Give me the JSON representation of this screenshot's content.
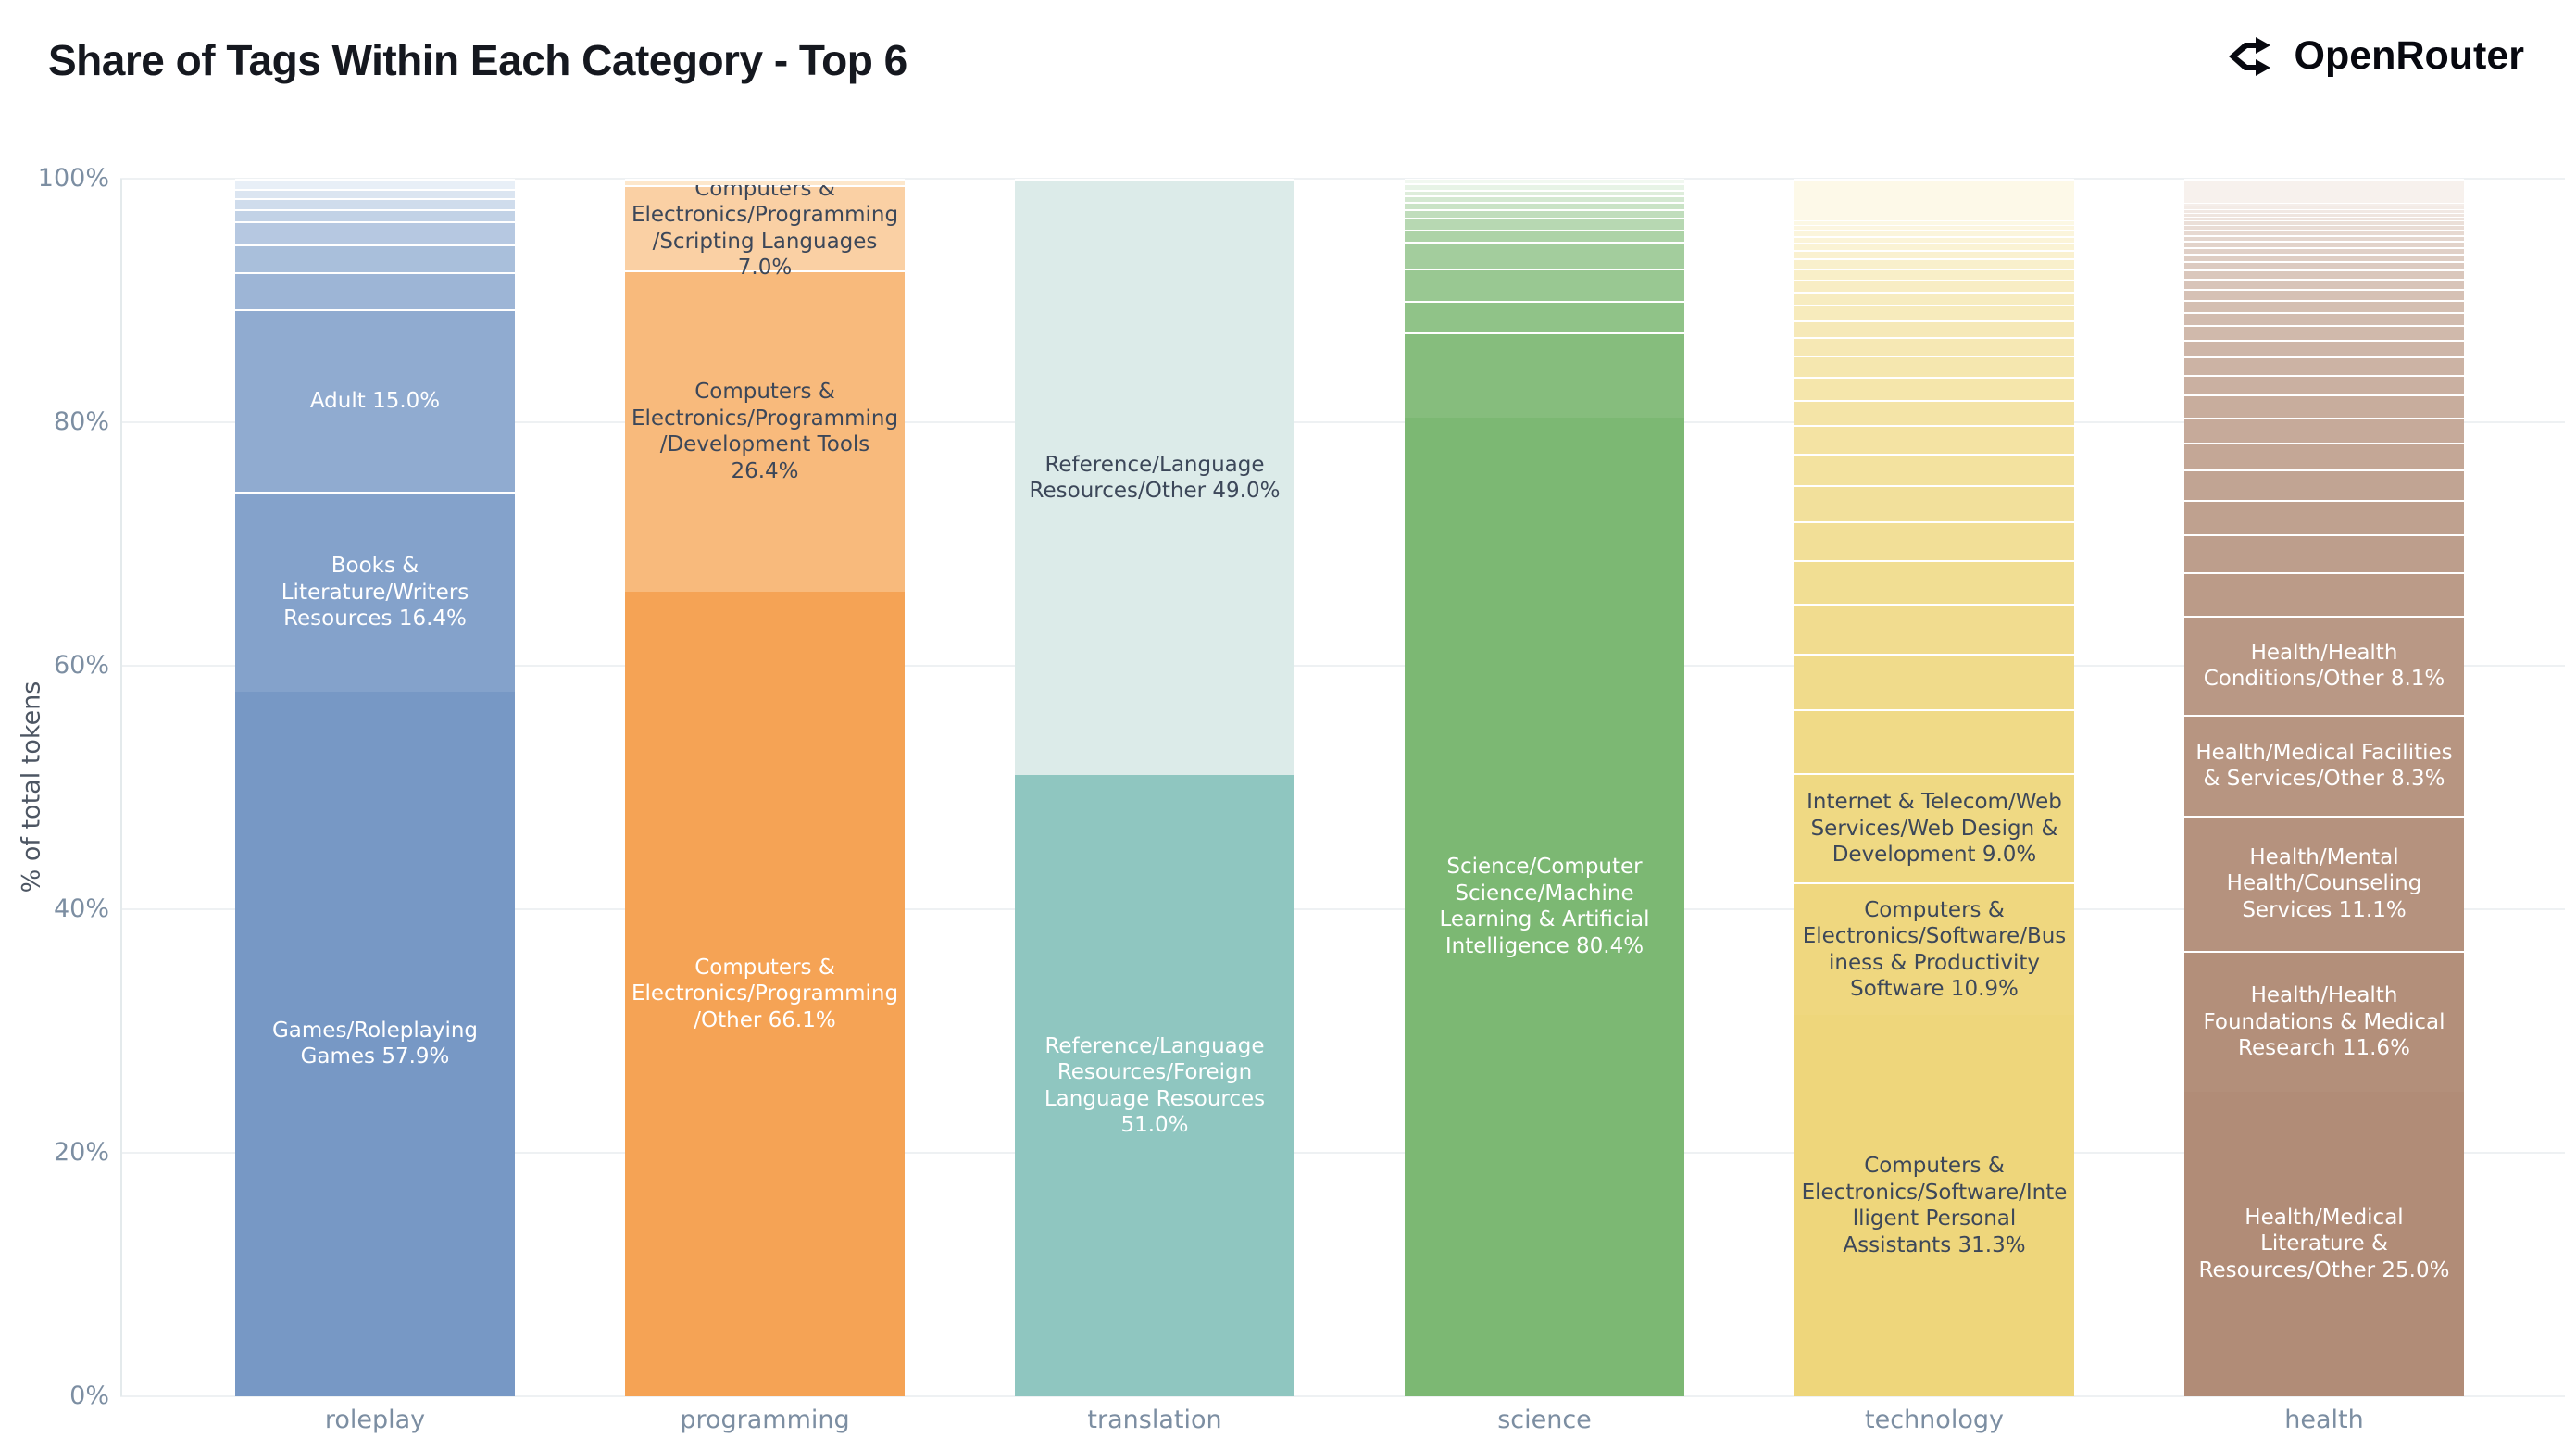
{
  "page": {
    "title": "Share of Tags Within Each Category - Top 6",
    "brand": {
      "name": "OpenRouter",
      "icon": "openrouter-fork-icon"
    }
  },
  "chart_data": {
    "type": "bar",
    "stacked": true,
    "normalized": "percent",
    "title": "Share of Tags Within Each Category - Top 6",
    "xlabel": "",
    "ylabel": "% of total tokens",
    "ylim": [
      0,
      100
    ],
    "yticks": [
      {
        "label": "0%",
        "value": 0
      },
      {
        "label": "20%",
        "value": 20
      },
      {
        "label": "40%",
        "value": 40
      },
      {
        "label": "60%",
        "value": 60
      },
      {
        "label": "80%",
        "value": 80
      },
      {
        "label": "100%",
        "value": 100
      }
    ],
    "grid": true,
    "legend": "none",
    "categories": [
      "roleplay",
      "programming",
      "translation",
      "science",
      "technology",
      "health"
    ],
    "bars": [
      {
        "category": "roleplay",
        "ramp": {
          "from": "#7798c5",
          "to": "#e8eff7"
        },
        "segments": [
          {
            "tag": "Games/Roleplaying Games",
            "pct": 57.9,
            "label": "Games/Roleplaying Games 57.9%",
            "text": "light"
          },
          {
            "tag": "Books & Literature/Writers Resources",
            "pct": 16.4,
            "label": "Books & Literature/Writers Resources 16.4%",
            "text": "light"
          },
          {
            "tag": "Adult",
            "pct": 15.0,
            "label": "Adult 15.0%",
            "text": "light"
          },
          {
            "pct": 3.0
          },
          {
            "pct": 2.3
          },
          {
            "pct": 1.9
          },
          {
            "pct": 1.0
          },
          {
            "pct": 0.9
          },
          {
            "pct": 0.8
          },
          {
            "pct": 0.8
          }
        ]
      },
      {
        "category": "programming",
        "ramp": {
          "from": "#f5a355",
          "to": "#fde7cb"
        },
        "segments": [
          {
            "tag": "Computers & Electronics/Programming/Other",
            "pct": 66.1,
            "label": "Computers & Electronics/Programming/Other 66.1%",
            "text": "light"
          },
          {
            "tag": "Computers & Electronics/Programming/Development Tools",
            "pct": 26.4,
            "label": "Computers & Electronics/Programming/Development Tools 26.4%",
            "text": "dark"
          },
          {
            "tag": "Computers & Electronics/Programming/Scripting Languages",
            "pct": 7.0,
            "label": "Computers & Electronics/Programming/Scripting Languages 7.0%",
            "text": "dark"
          },
          {
            "pct": 0.5
          }
        ]
      },
      {
        "category": "translation",
        "ramp": {
          "from": "#8fc6c0",
          "to": "#dcebe9"
        },
        "segments": [
          {
            "tag": "Reference/Language Resources/Foreign Language Resources",
            "pct": 51.0,
            "label": "Reference/Language Resources/Foreign Language Resources 51.0%",
            "text": "light"
          },
          {
            "tag": "Reference/Language Resources/Other",
            "pct": 49.0,
            "label": "Reference/Language Resources/Other 49.0%",
            "text": "dark"
          }
        ]
      },
      {
        "category": "science",
        "ramp": {
          "from": "#7cb873",
          "to": "#f1f8f0"
        },
        "segments": [
          {
            "tag": "Science/Computer Science/Machine Learning & Artificial Intelligence",
            "pct": 80.4,
            "label": "Science/Computer Science/Machine Learning & Artificial Intelligence 80.4%",
            "text": "light"
          },
          {
            "pct": 7.0
          },
          {
            "pct": 2.6
          },
          {
            "pct": 2.6
          },
          {
            "pct": 2.2
          },
          {
            "pct": 1.0
          },
          {
            "pct": 1.0
          },
          {
            "pct": 0.7
          },
          {
            "pct": 0.6
          },
          {
            "pct": 0.5
          },
          {
            "pct": 0.5
          },
          {
            "pct": 0.5
          },
          {
            "pct": 0.4
          }
        ]
      },
      {
        "category": "technology",
        "ramp": {
          "from": "#eed67b",
          "to": "#fdf9e8"
        },
        "segments": [
          {
            "tag": "Computers & Electronics/Software/Intelligent Personal Assistants",
            "pct": 31.3,
            "label": "Computers & Electronics/Software/Intelligent Personal Assistants 31.3%",
            "text": "dark"
          },
          {
            "tag": "Computers & Electronics/Software/Business & Productivity Software",
            "pct": 10.9,
            "label": "Computers & Electronics/Software/Business & Productivity Software 10.9%",
            "text": "dark"
          },
          {
            "tag": "Internet & Telecom/Web Services/Web Design & Development",
            "pct": 9.0,
            "label": "Internet & Telecom/Web Services/Web Design & Development 9.0%",
            "text": "dark"
          },
          {
            "pct": 5.2
          },
          {
            "pct": 4.6
          },
          {
            "pct": 4.1
          },
          {
            "pct": 3.6
          },
          {
            "pct": 3.2
          },
          {
            "pct": 2.9
          },
          {
            "pct": 2.6
          },
          {
            "pct": 2.35
          },
          {
            "pct": 2.1
          },
          {
            "pct": 1.9
          },
          {
            "pct": 1.7
          },
          {
            "pct": 1.55
          },
          {
            "pct": 1.4
          },
          {
            "pct": 1.25
          },
          {
            "pct": 1.1
          },
          {
            "pct": 1.0
          },
          {
            "pct": 0.9
          },
          {
            "pct": 0.8
          },
          {
            "pct": 0.7
          },
          {
            "pct": 0.62
          },
          {
            "pct": 0.55
          },
          {
            "pct": 0.48
          },
          {
            "pct": 0.42
          },
          {
            "pct": 0.38
          },
          {
            "pct": 3.4
          }
        ]
      },
      {
        "category": "health",
        "ramp": {
          "from": "#b18c77",
          "to": "#f7f1ed"
        },
        "segments": [
          {
            "tag": "Health/Medical Literature & Resources/Other",
            "pct": 25.0,
            "label": "Health/Medical Literature & Resources/Other 25.0%",
            "text": "light"
          },
          {
            "tag": "Health/Health Foundations & Medical Research",
            "pct": 11.6,
            "label": "Health/Health Foundations & Medical Research 11.6%",
            "text": "light"
          },
          {
            "tag": "Health/Mental Health/Counseling Services",
            "pct": 11.1,
            "label": "Health/Mental Health/Counseling Services 11.1%",
            "text": "light"
          },
          {
            "tag": "Health/Medical Facilities & Services/Other",
            "pct": 8.3,
            "label": "Health/Medical Facilities & Services/Other 8.3%",
            "text": "light"
          },
          {
            "tag": "Health/Health Conditions/Other",
            "pct": 8.1,
            "label": "Health/Health Conditions/Other 8.1%",
            "text": "light"
          },
          {
            "pct": 3.6
          },
          {
            "pct": 3.1
          },
          {
            "pct": 2.8
          },
          {
            "pct": 2.5
          },
          {
            "pct": 2.25
          },
          {
            "pct": 2.05
          },
          {
            "pct": 1.85
          },
          {
            "pct": 1.65
          },
          {
            "pct": 1.5
          },
          {
            "pct": 1.35
          },
          {
            "pct": 1.2
          },
          {
            "pct": 1.1
          },
          {
            "pct": 1.0
          },
          {
            "pct": 0.9
          },
          {
            "pct": 0.82
          },
          {
            "pct": 0.75
          },
          {
            "pct": 0.68
          },
          {
            "pct": 0.62
          },
          {
            "pct": 0.56
          },
          {
            "pct": 0.51
          },
          {
            "pct": 0.47
          },
          {
            "pct": 0.43
          },
          {
            "pct": 0.4
          },
          {
            "pct": 0.37
          },
          {
            "pct": 0.34
          },
          {
            "pct": 0.31
          },
          {
            "pct": 0.29
          },
          {
            "pct": 0.27
          },
          {
            "pct": 0.25
          },
          {
            "pct": 1.98
          }
        ]
      }
    ],
    "colors": {
      "label_light": "#ffffff",
      "label_dark": "#3c4759",
      "gridline": "#eef1f3",
      "axis_line": "#e4eaec",
      "tick_text": "#7c8ea2",
      "y_title_text": "#4d5663",
      "title_text": "#15181f",
      "brand_text": "#07080f"
    }
  }
}
